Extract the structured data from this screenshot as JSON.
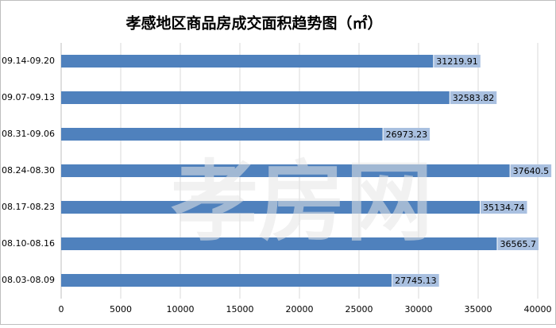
{
  "chart_data": {
    "type": "bar",
    "orientation": "horizontal",
    "title": "孝感地区商品房成交面积趋势图（㎡）",
    "watermark": "孝房网",
    "categories": [
      "09.14-09.20",
      "09.07-09.13",
      "08.31-09.06",
      "08.24-08.30",
      "08.17-08.23",
      "08.10-08.16",
      "08.03-08.09"
    ],
    "values": [
      31219.91,
      32583.82,
      26973.23,
      37640.5,
      35134.74,
      36565.7,
      27745.13
    ],
    "color": "#4f81bd",
    "label_color": "#a9c0e0",
    "xlim": [
      0,
      40000
    ],
    "xticks": [
      0,
      5000,
      10000,
      15000,
      20000,
      25000,
      30000,
      35000,
      40000
    ],
    "grid": true
  }
}
